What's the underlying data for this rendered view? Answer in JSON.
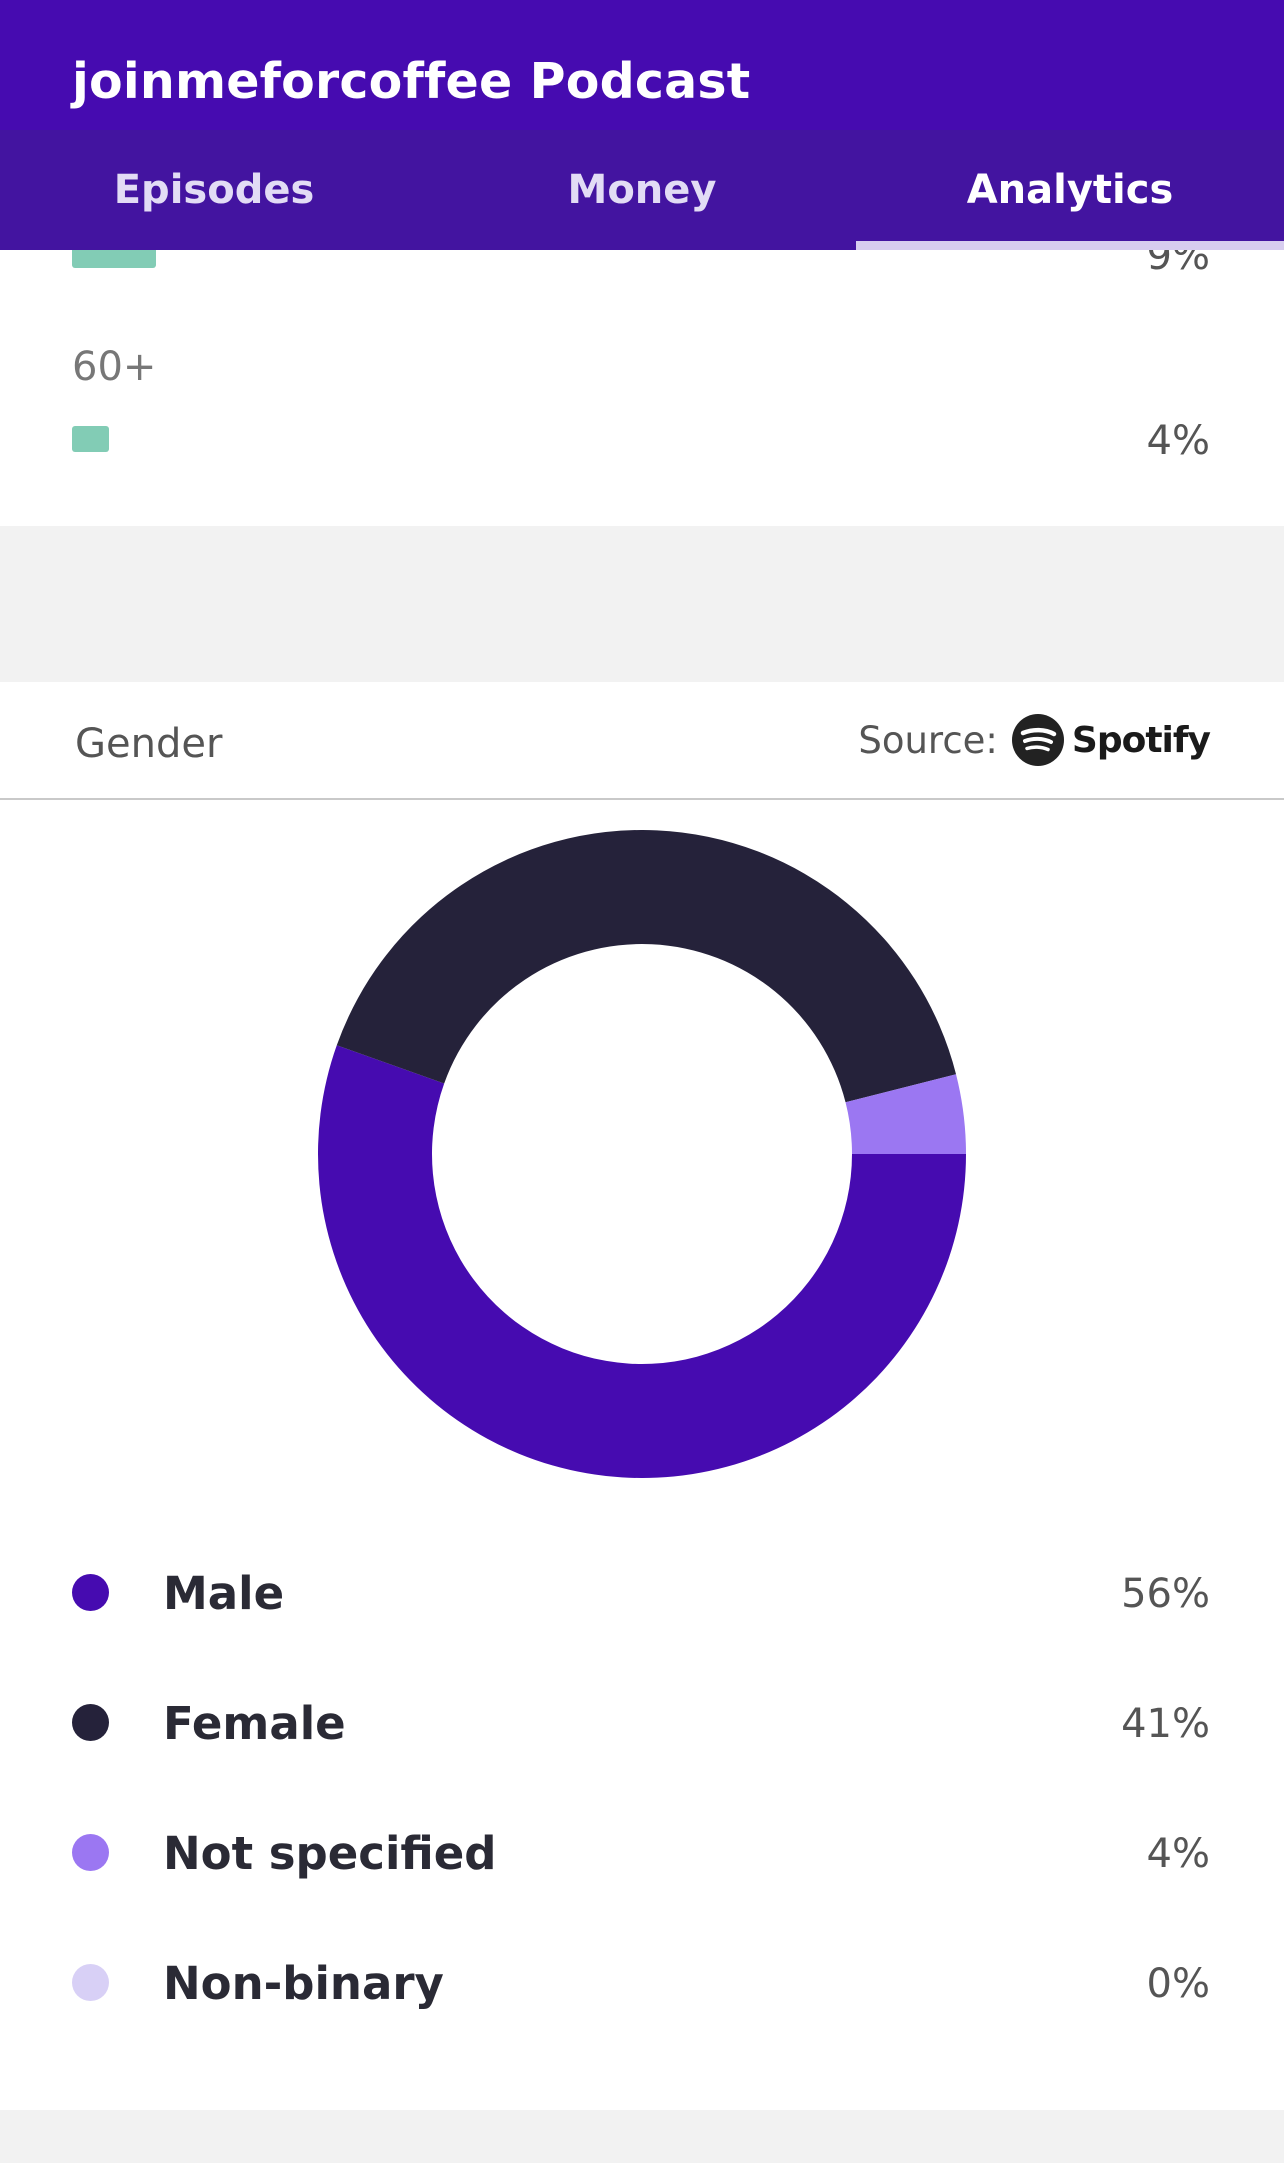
{
  "header": {
    "title": "joinmeforcoffee Podcast"
  },
  "tabs": [
    {
      "label": "Episodes",
      "active": false
    },
    {
      "label": "Money",
      "active": false
    },
    {
      "label": "Analytics",
      "active": true
    }
  ],
  "age": {
    "rows": [
      {
        "label": "",
        "value": "9%"
      },
      {
        "label": "60+",
        "value": "4%"
      }
    ]
  },
  "gender": {
    "title": "Gender",
    "source_label": "Source:",
    "source_name": "Spotify",
    "source_icon": "spotify-icon"
  },
  "chart_data": {
    "type": "pie",
    "title": "Gender",
    "categories": [
      "Male",
      "Female",
      "Not specified",
      "Non-binary"
    ],
    "values": [
      56,
      41,
      4,
      0
    ],
    "labels": [
      "56%",
      "41%",
      "4%",
      "0%"
    ],
    "colors": [
      "#460bb0",
      "#25223a",
      "#9b77f2",
      "#d8d0f6"
    ],
    "legend": "bottom"
  }
}
